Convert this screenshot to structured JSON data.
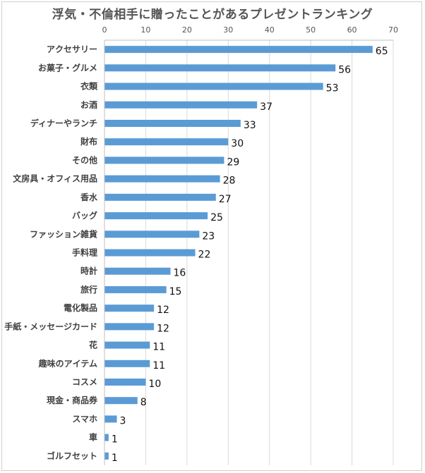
{
  "title": "浮気・不倫相手に贈ったことがあるプレゼントランキング",
  "colors": {
    "bar": "#5b9bd5",
    "grid": "#d9d9d9",
    "axis": "#bfbfbf"
  },
  "chart_data": {
    "type": "bar",
    "orientation": "horizontal",
    "title": "浮気・不倫相手に贈ったことがあるプレゼントランキング",
    "categories": [
      "アクセサリー",
      "お菓子・グルメ",
      "衣類",
      "お酒",
      "ディナーやランチ",
      "財布",
      "その他",
      "文房具・オフィス用品",
      "香水",
      "バッグ",
      "ファッション雑貨",
      "手料理",
      "時計",
      "旅行",
      "電化製品",
      "手紙・メッセージカード",
      "花",
      "趣味のアイテム",
      "コスメ",
      "現金・商品券",
      "スマホ",
      "車",
      "ゴルフセット"
    ],
    "values": [
      65,
      56,
      53,
      37,
      33,
      30,
      29,
      28,
      27,
      25,
      23,
      22,
      16,
      15,
      12,
      12,
      11,
      11,
      10,
      8,
      3,
      1,
      1
    ],
    "xlim": [
      0,
      70
    ],
    "xticks": [
      0,
      10,
      20,
      30,
      40,
      50,
      60,
      70
    ],
    "x_axis_position": "top",
    "grid": true,
    "data_labels": true
  }
}
